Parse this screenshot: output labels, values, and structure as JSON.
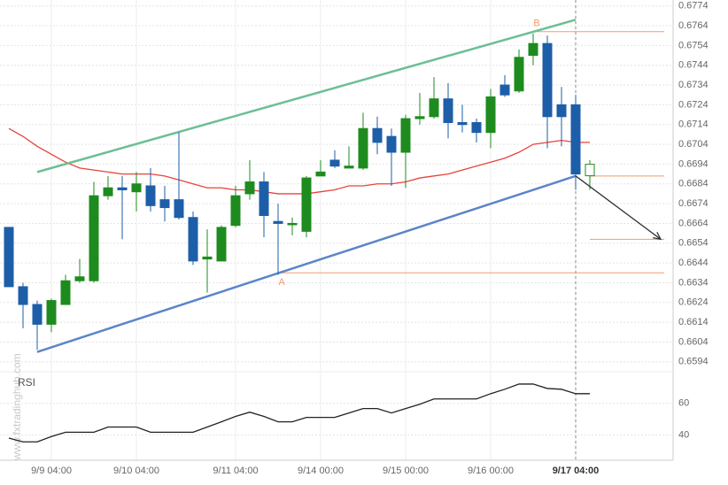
{
  "chart_data": {
    "type": "candlestick",
    "categories": [
      null,
      null,
      null,
      "9/9 04:00",
      null,
      null,
      null,
      null,
      null,
      "9/10 04:00",
      null,
      null,
      null,
      null,
      null,
      null,
      "9/11 04:00",
      null,
      null,
      null,
      null,
      null,
      "9/14 00:00",
      null,
      null,
      null,
      null,
      null,
      "9/15 00:00",
      null,
      null,
      null,
      null,
      null,
      "9/16 00:00",
      null,
      null,
      null,
      null,
      null,
      "9/17 04:00",
      null
    ],
    "open": [
      0.6662,
      0.6632,
      0.6623,
      0.6613,
      0.6623,
      0.6635,
      0.6635,
      0.6678,
      0.6682,
      0.668,
      0.6683,
      0.6676,
      0.6676,
      0.6667,
      0.6646,
      0.6645,
      0.6663,
      0.6679,
      0.6685,
      0.6665,
      0.6664,
      0.666,
      0.6688,
      0.6696,
      0.6692,
      0.6692,
      0.6712,
      0.6708,
      0.67,
      0.6717,
      0.6718,
      0.6727,
      0.6715,
      0.6715,
      0.671,
      0.6734,
      0.6731,
      0.6749,
      0.6755,
      0.6724,
      0.6724,
      0.6689
    ],
    "high": [
      0.6662,
      0.6634,
      0.6625,
      0.6626,
      0.6638,
      0.6646,
      0.6685,
      0.6688,
      0.6688,
      0.669,
      0.6692,
      0.6683,
      0.671,
      0.667,
      0.6661,
      0.6663,
      0.6683,
      0.6696,
      0.669,
      0.6674,
      0.6667,
      0.6688,
      0.6696,
      0.6701,
      0.6703,
      0.672,
      0.6718,
      0.6712,
      0.6719,
      0.673,
      0.6738,
      0.6735,
      0.6724,
      0.6717,
      0.6732,
      0.6739,
      0.6752,
      0.676,
      0.6759,
      0.6733,
      0.6729,
      0.6696
    ],
    "low": [
      0.6632,
      0.6611,
      0.66,
      0.6609,
      0.6623,
      0.6634,
      0.6634,
      0.6676,
      0.6656,
      0.667,
      0.667,
      0.6665,
      0.6666,
      0.6643,
      0.6629,
      0.6645,
      0.6662,
      0.6676,
      0.6657,
      0.6638,
      0.6658,
      0.6657,
      0.6688,
      0.6692,
      0.6692,
      0.6691,
      0.6699,
      0.6683,
      0.6682,
      0.6714,
      0.6717,
      0.6707,
      0.671,
      0.6705,
      0.6702,
      0.6728,
      0.673,
      0.6744,
      0.6702,
      0.6703,
      0.6681,
      0.6681
    ],
    "close": [
      0.6632,
      0.6623,
      0.6613,
      0.6625,
      0.6635,
      0.6637,
      0.6678,
      0.6682,
      0.6681,
      0.6684,
      0.6673,
      0.6672,
      0.6667,
      0.6645,
      0.6647,
      0.6662,
      0.6678,
      0.6685,
      0.6668,
      0.6664,
      0.6664,
      0.6687,
      0.669,
      0.6693,
      0.6693,
      0.6712,
      0.6705,
      0.67,
      0.6717,
      0.6718,
      0.6727,
      0.6715,
      0.6714,
      0.671,
      0.6728,
      0.6729,
      0.6748,
      0.6755,
      0.6718,
      0.6718,
      0.6689,
      0.6693
    ],
    "up_color": "#1e8b1e",
    "down_color": "#1d5ea8",
    "ylim": [
      0.6589,
      0.6777
    ],
    "yticks": [
      0.6594,
      0.6604,
      0.6614,
      0.6624,
      0.6634,
      0.6644,
      0.6654,
      0.6664,
      0.6674,
      0.6684,
      0.6694,
      0.6704,
      0.6714,
      0.6724,
      0.6734,
      0.6744,
      0.6754,
      0.6764,
      0.6774
    ],
    "grid": true,
    "ma": {
      "color": "#e8433a",
      "values": [
        0.6712,
        0.6708,
        0.6703,
        0.6699,
        0.6695,
        0.6692,
        0.6691,
        0.669,
        0.6689,
        0.6689,
        0.6689,
        0.6688,
        0.6686,
        0.6684,
        0.6682,
        0.6682,
        0.6681,
        0.6681,
        0.668,
        0.6679,
        0.6679,
        0.6679,
        0.668,
        0.6681,
        0.6683,
        0.6683,
        0.6684,
        0.6684,
        0.6685,
        0.6687,
        0.6688,
        0.6689,
        0.6691,
        0.6693,
        0.6695,
        0.6697,
        0.67,
        0.6704,
        0.6705,
        0.6706,
        0.6705,
        0.6705
      ]
    },
    "channel": [
      {
        "color": "#6dbf94",
        "from": [
          2,
          0.669
        ],
        "to": [
          40,
          0.6767
        ]
      },
      {
        "color": "#5b85c8",
        "from": [
          2,
          0.6599
        ],
        "to": [
          40,
          0.6688
        ]
      }
    ],
    "levels": [
      {
        "label": "B",
        "value": 0.6761,
        "from": 37
      },
      {
        "label": "A",
        "value": 0.6639,
        "from": 19
      },
      {
        "value": 0.6688,
        "from": 41
      },
      {
        "value": 0.6656,
        "from": 41
      }
    ],
    "level_color": "#f39a6b",
    "arrow": {
      "from": [
        40,
        0.6688
      ],
      "to": [
        46,
        0.6656
      ]
    },
    "rsi": {
      "title": "RSI",
      "color": "#222222",
      "ylim": [
        24,
        80
      ],
      "yticks": [
        40,
        60
      ],
      "values": [
        38,
        35.6,
        35.6,
        39,
        41.7,
        41.7,
        41.7,
        45,
        45,
        45,
        41.7,
        41.7,
        41.7,
        41.7,
        45,
        48.3,
        51.7,
        54.4,
        51.7,
        48.3,
        48.3,
        51.1,
        51.1,
        51.1,
        53.9,
        56.7,
        56.7,
        53.9,
        56.7,
        59.4,
        62.8,
        62.8,
        62.8,
        62.8,
        66.1,
        68.9,
        72.2,
        72.2,
        69.4,
        68.9,
        66.1,
        66.1
      ]
    },
    "watermark": "www.fxtradinghub.com"
  }
}
